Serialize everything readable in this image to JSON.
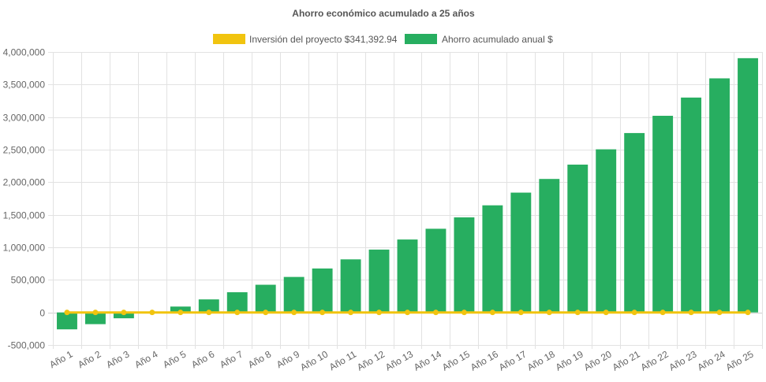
{
  "chart_data": {
    "type": "bar",
    "title": "Ahorro económico acumulado a 25 años",
    "categories": [
      "Año 1",
      "Año 2",
      "Año 3",
      "Año 4",
      "Año 5",
      "Año 6",
      "Año 7",
      "Año 8",
      "Año 9",
      "Año 10",
      "Año 11",
      "Año 12",
      "Año 13",
      "Año 14",
      "Año 15",
      "Año 16",
      "Año 17",
      "Año 18",
      "Año 19",
      "Año 20",
      "Año 21",
      "Año 22",
      "Año 23",
      "Año 24",
      "Año 25"
    ],
    "series": [
      {
        "name": "Inversión del proyecto $341,392.94",
        "kind": "line",
        "color": "#f1c40f",
        "values": [
          0,
          0,
          0,
          0,
          0,
          0,
          0,
          0,
          0,
          0,
          0,
          0,
          0,
          0,
          0,
          0,
          0,
          0,
          0,
          0,
          0,
          0,
          0,
          0,
          0
        ]
      },
      {
        "name": "Ahorro acumulado anual $",
        "kind": "bar",
        "color": "#27ae60",
        "values": [
          -260000,
          -180000,
          -90000,
          0,
          90000,
          200000,
          310000,
          425000,
          545000,
          675000,
          815000,
          965000,
          1120000,
          1285000,
          1460000,
          1645000,
          1840000,
          2050000,
          2270000,
          2505000,
          2755000,
          3020000,
          3300000,
          3595000,
          3905000
        ]
      }
    ],
    "ylim": [
      -500000,
      4000000
    ],
    "yticks": [
      -500000,
      0,
      500000,
      1000000,
      1500000,
      2000000,
      2500000,
      3000000,
      3500000,
      4000000
    ],
    "ytick_labels": [
      "-500,000",
      "0",
      "500,000",
      "1,000,000",
      "1,500,000",
      "2,000,000",
      "2,500,000",
      "3,000,000",
      "3,500,000",
      "4,000,000"
    ],
    "xlabel": "",
    "ylabel": "",
    "grid": true,
    "legend_position": "top-center"
  }
}
